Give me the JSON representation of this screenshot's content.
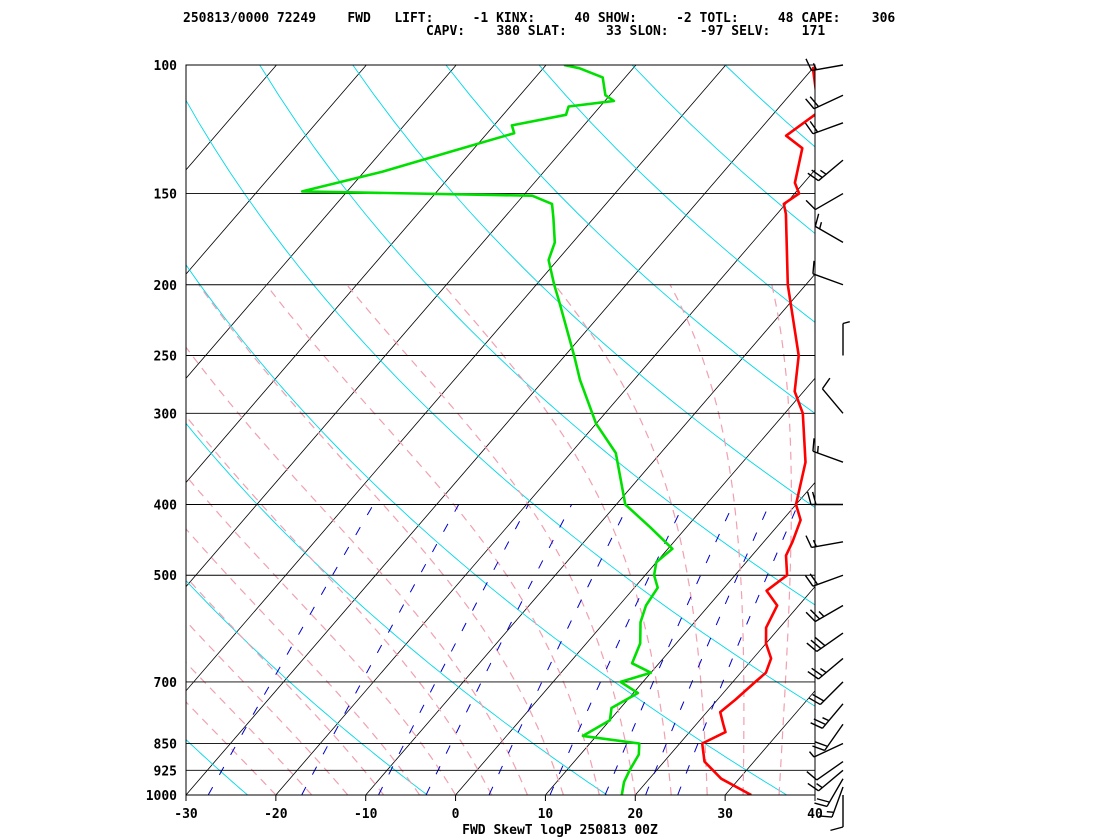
{
  "header": {
    "line1": "250813/0000 72249    FWD   LIFT:     -1 KINX:     40 SHOW:     -2 TOTL:     48 CAPE:    306",
    "line2": "CAPV:    380 SLAT:     33 SLON:    -97 SELV:    171"
  },
  "chart_data": {
    "type": "line",
    "title": "FWD SkewT logP 250813 00Z",
    "xlabel": "",
    "ylabel": "",
    "xlim": [
      -30,
      40
    ],
    "plim": [
      1000,
      100
    ],
    "x_ticks": [
      "-30",
      "-20",
      "-10",
      "0",
      "10",
      "20",
      "30",
      "40"
    ],
    "p_ticks": [
      "100",
      "150",
      "200",
      "250",
      "300",
      "400",
      "500",
      "700",
      "850",
      "925",
      "1000"
    ],
    "grid": true,
    "series": [
      {
        "name": "",
        "color": "#ff0000",
        "kind": "temperature",
        "points": [
          [
            32.9,
            1000
          ],
          [
            28.0,
            950
          ],
          [
            24.5,
            900
          ],
          [
            22.5,
            850
          ],
          [
            24.0,
            820
          ],
          [
            23.0,
            800
          ],
          [
            21.5,
            770
          ],
          [
            22.0,
            740
          ],
          [
            22.5,
            700
          ],
          [
            22.8,
            680
          ],
          [
            22.0,
            650
          ],
          [
            20.0,
            620
          ],
          [
            18.5,
            590
          ],
          [
            17.6,
            550
          ],
          [
            15.0,
            525
          ],
          [
            15.8,
            500
          ],
          [
            13.8,
            470
          ],
          [
            13.2,
            450
          ],
          [
            12.0,
            420
          ],
          [
            10.0,
            400
          ],
          [
            7.0,
            350
          ],
          [
            2.0,
            300
          ],
          [
            -1.0,
            280
          ],
          [
            -4.0,
            250
          ],
          [
            -12.0,
            200
          ],
          [
            -19.0,
            160
          ],
          [
            -20.2,
            155
          ],
          [
            -19.5,
            150
          ],
          [
            -21.0,
            145
          ],
          [
            -23.5,
            130
          ],
          [
            -26.5,
            125
          ],
          [
            -25.0,
            115
          ],
          [
            -27.0,
            110
          ],
          [
            -30.0,
            101
          ],
          [
            -27.5,
            100
          ]
        ]
      },
      {
        "name": "",
        "color": "#00e000",
        "kind": "dewpoint",
        "points": [
          [
            18.5,
            1000
          ],
          [
            17.5,
            960
          ],
          [
            17.0,
            925
          ],
          [
            16.5,
            880
          ],
          [
            15.5,
            850
          ],
          [
            8.5,
            830
          ],
          [
            10.0,
            790
          ],
          [
            9.0,
            760
          ],
          [
            10.5,
            725
          ],
          [
            7.5,
            700
          ],
          [
            10.0,
            680
          ],
          [
            7.0,
            660
          ],
          [
            6.0,
            620
          ],
          [
            4.0,
            580
          ],
          [
            3.0,
            550
          ],
          [
            2.6,
            520
          ],
          [
            1.0,
            500
          ],
          [
            0.0,
            480
          ],
          [
            0.5,
            460
          ],
          [
            -4.0,
            430
          ],
          [
            -9.0,
            400
          ],
          [
            -15.0,
            340
          ],
          [
            -20.0,
            310
          ],
          [
            -26.0,
            270
          ],
          [
            -29.0,
            250
          ],
          [
            -36.0,
            210
          ],
          [
            -38.0,
            200
          ],
          [
            -41.0,
            185
          ],
          [
            -42.0,
            175
          ],
          [
            -44.5,
            162
          ],
          [
            -46.0,
            155
          ],
          [
            -49.0,
            151
          ],
          [
            -75.0,
            149
          ],
          [
            -68.0,
            140
          ],
          [
            -62.0,
            131
          ],
          [
            -57.0,
            124
          ],
          [
            -58.0,
            121
          ],
          [
            -53.0,
            117
          ],
          [
            -53.5,
            114
          ],
          [
            -49.0,
            112
          ],
          [
            -50.5,
            110
          ],
          [
            -52.5,
            104
          ],
          [
            -56.0,
            101
          ],
          [
            -58.0,
            100
          ]
        ]
      }
    ],
    "wind_barbs": [
      {
        "p": 1000,
        "dir": 180,
        "spd": 10
      },
      {
        "p": 975,
        "dir": 200,
        "spd": 15
      },
      {
        "p": 950,
        "dir": 210,
        "spd": 20
      },
      {
        "p": 925,
        "dir": 230,
        "spd": 15
      },
      {
        "p": 900,
        "dir": 235,
        "spd": 10
      },
      {
        "p": 850,
        "dir": 245,
        "spd": 5
      },
      {
        "p": 800,
        "dir": 215,
        "spd": 20
      },
      {
        "p": 750,
        "dir": 220,
        "spd": 25
      },
      {
        "p": 700,
        "dir": 225,
        "spd": 20
      },
      {
        "p": 650,
        "dir": 230,
        "spd": 25
      },
      {
        "p": 600,
        "dir": 235,
        "spd": 30
      },
      {
        "p": 550,
        "dir": 240,
        "spd": 25
      },
      {
        "p": 500,
        "dir": 250,
        "spd": 20
      },
      {
        "p": 450,
        "dir": 260,
        "spd": 15
      },
      {
        "p": 400,
        "dir": 270,
        "spd": 20
      },
      {
        "p": 350,
        "dir": 290,
        "spd": 15
      },
      {
        "p": 300,
        "dir": 320,
        "spd": 10
      },
      {
        "p": 250,
        "dir": 0,
        "spd": 5
      },
      {
        "p": 200,
        "dir": 290,
        "spd": 10
      },
      {
        "p": 175,
        "dir": 300,
        "spd": 15
      },
      {
        "p": 150,
        "dir": 240,
        "spd": 10
      },
      {
        "p": 135,
        "dir": 230,
        "spd": 25
      },
      {
        "p": 120,
        "dir": 250,
        "spd": 20
      },
      {
        "p": 110,
        "dir": 245,
        "spd": 20
      },
      {
        "p": 100,
        "dir": 260,
        "spd": 15
      }
    ]
  }
}
